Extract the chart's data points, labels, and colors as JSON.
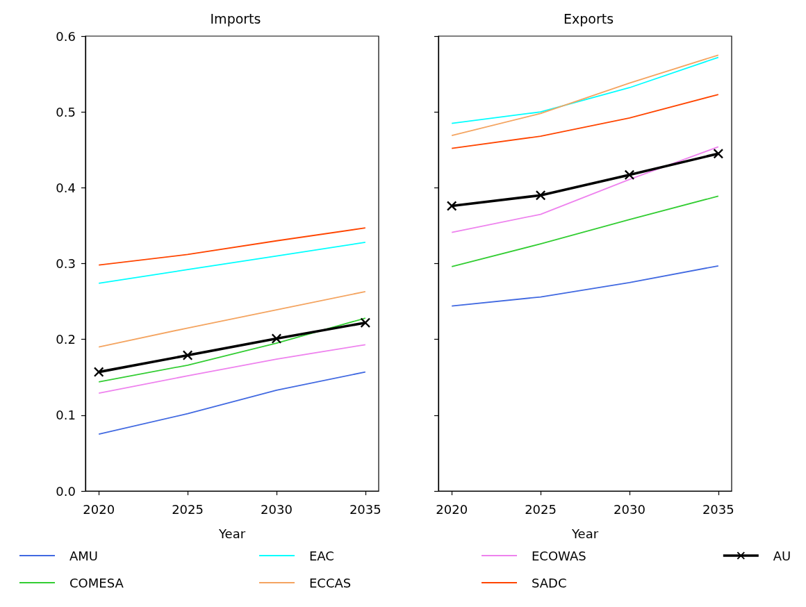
{
  "chart_data": [
    {
      "type": "line",
      "title": "Imports",
      "xlabel": "Year",
      "x": [
        2020,
        2025,
        2030,
        2035
      ],
      "xlim": [
        2019.25,
        2035.75
      ],
      "xticks": [
        2020,
        2025,
        2030,
        2035
      ],
      "ylim": [
        0,
        0.6
      ],
      "yticks": [
        {
          "value": 0,
          "label": "0.0"
        },
        0.1,
        0.2,
        0.3,
        0.4,
        0.5,
        0.6
      ],
      "legend": "bottom",
      "marker": "none",
      "series": [
        {
          "name": "AMU",
          "color": "#4169e1",
          "values": [
            0.075,
            0.102,
            0.133,
            0.157
          ]
        },
        {
          "name": "COMESA",
          "color": "#32cd32",
          "values": [
            0.144,
            0.166,
            0.195,
            0.228
          ]
        },
        {
          "name": "EAC",
          "color": "#00ffff",
          "values": [
            0.274,
            0.292,
            0.31,
            0.328
          ]
        },
        {
          "name": "ECCAS",
          "color": "#f4a460",
          "values": [
            0.19,
            0.215,
            0.239,
            0.263
          ]
        },
        {
          "name": "ECOWAS",
          "color": "#ee82ee",
          "values": [
            0.129,
            0.152,
            0.174,
            0.193
          ]
        },
        {
          "name": "SADC",
          "color": "#ff4500",
          "values": [
            0.298,
            0.312,
            0.33,
            0.347
          ]
        },
        {
          "name": "AU",
          "color": "#000000",
          "marker": "cross",
          "values": [
            0.157,
            0.179,
            0.201,
            0.222
          ]
        }
      ]
    },
    {
      "type": "line",
      "title": "Exports",
      "xlabel": "Year",
      "x": [
        2020,
        2025,
        2030,
        2035
      ],
      "xlim": [
        2019.25,
        2035.75
      ],
      "xticks": [
        2020,
        2025,
        2030,
        2035
      ],
      "ylim": [
        0,
        0.6
      ],
      "yticks": [
        0,
        0.1,
        0.2,
        0.3,
        0.4,
        0.5,
        0.6
      ],
      "tick_labels": "x",
      "marker": "none",
      "series": [
        {
          "color": "#4169e1",
          "values": [
            0.244,
            0.256,
            0.275,
            0.297
          ]
        },
        {
          "color": "#32cd32",
          "values": [
            0.296,
            0.326,
            0.358,
            0.389
          ]
        },
        {
          "color": "#00ffff",
          "values": [
            0.485,
            0.5,
            0.532,
            0.572
          ]
        },
        {
          "color": "#f4a460",
          "values": [
            0.469,
            0.498,
            0.538,
            0.575
          ]
        },
        {
          "color": "#ee82ee",
          "values": [
            0.341,
            0.365,
            0.411,
            0.454
          ]
        },
        {
          "color": "#ff4500",
          "values": [
            0.452,
            0.468,
            0.492,
            0.523
          ]
        },
        {
          "color": "#000000",
          "marker": "cross",
          "values": [
            0.376,
            0.39,
            0.417,
            0.445
          ]
        }
      ]
    }
  ]
}
